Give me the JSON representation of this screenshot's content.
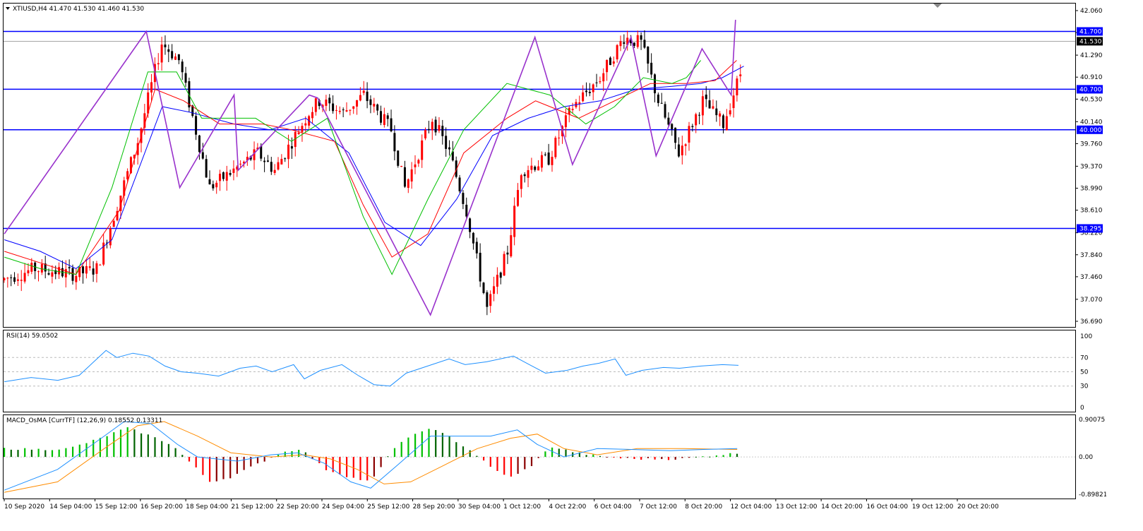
{
  "header": {
    "symbol_line": "XTIUSD,H4  41.470 41.530 41.460 41.530",
    "rsi_label": "RSI(14) 59.0502",
    "macd_label": "MACD_OsMA [CurrTF] (12,26,9) 0.18552 0.13311"
  },
  "colors": {
    "bull": "#ff0000",
    "bear": "#000000",
    "hline": "#0000ff",
    "zigzag": "#9932cc",
    "ma_fast": "#00c000",
    "ma_mid": "#ff0000",
    "ma_slow": "#0000ff",
    "rsi": "#1e90ff",
    "macd_main": "#1e90ff",
    "macd_signal": "#ff8c00"
  },
  "chart_data": [
    {
      "type": "candlestick",
      "title": "XTIUSD,H4",
      "ylim": [
        36.69,
        42.06
      ],
      "y_ticks": [
        "42.060",
        "41.680",
        "41.290",
        "40.910",
        "40.530",
        "40.140",
        "39.760",
        "39.370",
        "38.990",
        "38.610",
        "38.220",
        "37.840",
        "37.460",
        "37.070",
        "36.690"
      ],
      "x_ticks": [
        "10 Sep 2020",
        "14 Sep 04:00",
        "15 Sep 12:00",
        "16 Sep 20:00",
        "18 Sep 04:00",
        "21 Sep 12:00",
        "22 Sep 20:00",
        "24 Sep 04:00",
        "25 Sep 12:00",
        "28 Sep 20:00",
        "30 Sep 04:00",
        "1 Oct 12:00",
        "4 Oct 22:00",
        "6 Oct 04:00",
        "7 Oct 12:00",
        "8 Oct 20:00",
        "12 Oct 04:00",
        "13 Oct 12:00",
        "14 Oct 20:00",
        "16 Oct 04:00",
        "19 Oct 12:00",
        "20 Oct 20:00"
      ],
      "horizontal_levels": [
        {
          "value": 41.7,
          "label": "41.700"
        },
        {
          "value": 40.7,
          "label": "40.700"
        },
        {
          "value": 40.0,
          "label": "40.000"
        },
        {
          "value": 38.295,
          "label": "38.295"
        }
      ],
      "current_price": {
        "value": 41.53,
        "label": "41.530"
      },
      "candle_count": 216,
      "price_path": [
        [
          0,
          37.4
        ],
        [
          10,
          37.6
        ],
        [
          22,
          37.5
        ],
        [
          28,
          37.6
        ],
        [
          40,
          39.8
        ],
        [
          47,
          41.5
        ],
        [
          52,
          41.2
        ],
        [
          61,
          39.0
        ],
        [
          75,
          39.6
        ],
        [
          80,
          39.3
        ],
        [
          90,
          40.3
        ],
        [
          93,
          40.5
        ],
        [
          100,
          40.3
        ],
        [
          106,
          40.6
        ],
        [
          114,
          40.0
        ],
        [
          118,
          39.0
        ],
        [
          126,
          40.2
        ],
        [
          131,
          39.6
        ],
        [
          136,
          38.6
        ],
        [
          142,
          36.9
        ],
        [
          148,
          37.9
        ],
        [
          152,
          39.3
        ],
        [
          160,
          39.5
        ],
        [
          167,
          40.4
        ],
        [
          175,
          40.9
        ],
        [
          182,
          41.6
        ],
        [
          187,
          41.5
        ],
        [
          192,
          40.5
        ],
        [
          198,
          39.6
        ],
        [
          205,
          40.5
        ],
        [
          211,
          40.1
        ],
        [
          219,
          41.5
        ],
        [
          224,
          40.6
        ],
        [
          227,
          39.6
        ],
        [
          233,
          40.6
        ],
        [
          237,
          41.2
        ],
        [
          246,
          41.1
        ],
        [
          252,
          41.0
        ],
        [
          256,
          41.4
        ],
        [
          262,
          41.4
        ],
        [
          266,
          40.7
        ],
        [
          270,
          41.6
        ],
        [
          274,
          41.53
        ]
      ],
      "zigzag": [
        [
          0,
          38.2
        ],
        [
          34,
          41.7
        ],
        [
          42,
          39.0
        ],
        [
          55,
          40.6
        ],
        [
          56,
          39.3
        ],
        [
          73,
          40.6
        ],
        [
          75,
          40.55
        ],
        [
          102,
          36.8
        ],
        [
          127,
          41.6
        ],
        [
          136,
          39.4
        ],
        [
          150,
          41.6
        ],
        [
          156,
          39.55
        ],
        [
          167,
          41.4
        ],
        [
          174,
          40.6
        ],
        [
          175,
          41.9
        ]
      ],
      "ma_fast_path": [
        [
          0,
          37.8
        ],
        [
          10,
          37.6
        ],
        [
          20,
          37.5
        ],
        [
          30,
          39.0
        ],
        [
          40,
          41.0
        ],
        [
          48,
          41.0
        ],
        [
          55,
          40.2
        ],
        [
          70,
          40.2
        ],
        [
          80,
          39.8
        ],
        [
          90,
          40.2
        ],
        [
          100,
          38.5
        ],
        [
          108,
          37.5
        ],
        [
          118,
          38.8
        ],
        [
          128,
          40.0
        ],
        [
          140,
          40.8
        ],
        [
          152,
          40.6
        ],
        [
          162,
          40.1
        ],
        [
          170,
          40.4
        ],
        [
          178,
          40.9
        ],
        [
          186,
          40.8
        ],
        [
          190,
          40.9
        ],
        [
          194,
          41.2
        ]
      ],
      "ma_mid_path": [
        [
          0,
          37.9
        ],
        [
          10,
          37.7
        ],
        [
          20,
          37.5
        ],
        [
          32,
          38.6
        ],
        [
          42,
          40.7
        ],
        [
          50,
          40.5
        ],
        [
          60,
          40.1
        ],
        [
          72,
          40.1
        ],
        [
          80,
          40.0
        ],
        [
          92,
          39.8
        ],
        [
          100,
          38.7
        ],
        [
          108,
          37.8
        ],
        [
          118,
          38.2
        ],
        [
          128,
          39.6
        ],
        [
          140,
          40.2
        ],
        [
          148,
          40.5
        ],
        [
          160,
          40.2
        ],
        [
          170,
          40.5
        ],
        [
          180,
          40.8
        ],
        [
          190,
          40.8
        ],
        [
          198,
          40.85
        ],
        [
          204,
          41.2
        ]
      ],
      "ma_slow_path": [
        [
          0,
          38.1
        ],
        [
          10,
          37.9
        ],
        [
          20,
          37.6
        ],
        [
          30,
          38.1
        ],
        [
          44,
          40.4
        ],
        [
          52,
          40.3
        ],
        [
          64,
          40.1
        ],
        [
          74,
          40.0
        ],
        [
          84,
          40.2
        ],
        [
          96,
          39.6
        ],
        [
          106,
          38.4
        ],
        [
          116,
          38.0
        ],
        [
          126,
          38.8
        ],
        [
          136,
          39.9
        ],
        [
          146,
          40.2
        ],
        [
          156,
          40.4
        ],
        [
          166,
          40.5
        ],
        [
          176,
          40.7
        ],
        [
          186,
          40.75
        ],
        [
          194,
          40.8
        ],
        [
          200,
          40.9
        ],
        [
          206,
          41.1
        ]
      ]
    },
    {
      "type": "line",
      "title": "RSI(14) 59.0502",
      "ylim": [
        0,
        100
      ],
      "y_ticks": [
        "100",
        "70",
        "50",
        "30",
        "0"
      ],
      "levels": [
        70,
        50,
        30
      ],
      "series": [
        {
          "name": "RSI(14)",
          "points": [
            [
              0,
              36
            ],
            [
              10,
              42
            ],
            [
              20,
              38
            ],
            [
              28,
              45
            ],
            [
              34,
              66
            ],
            [
              38,
              80
            ],
            [
              42,
              70
            ],
            [
              48,
              76
            ],
            [
              54,
              72
            ],
            [
              60,
              58
            ],
            [
              66,
              50
            ],
            [
              72,
              48
            ],
            [
              80,
              44
            ],
            [
              88,
              55
            ],
            [
              94,
              58
            ],
            [
              100,
              50
            ],
            [
              108,
              60
            ],
            [
              112,
              40
            ],
            [
              118,
              52
            ],
            [
              126,
              60
            ],
            [
              132,
              45
            ],
            [
              138,
              32
            ],
            [
              144,
              30
            ],
            [
              150,
              48
            ],
            [
              158,
              58
            ],
            [
              166,
              68
            ],
            [
              172,
              60
            ],
            [
              180,
              64
            ],
            [
              190,
              72
            ],
            [
              196,
              60
            ],
            [
              202,
              48
            ],
            [
              210,
              52
            ],
            [
              216,
              58
            ],
            [
              222,
              62
            ],
            [
              228,
              68
            ],
            [
              232,
              45
            ],
            [
              238,
              52
            ],
            [
              246,
              56
            ],
            [
              252,
              55
            ],
            [
              260,
              58
            ],
            [
              268,
              60
            ],
            [
              274,
              59
            ]
          ]
        }
      ]
    },
    {
      "type": "bar",
      "title": "MACD_OsMA [CurrTF] (12,26,9) 0.18552 0.13311",
      "ylim": [
        -0.89821,
        0.90075
      ],
      "y_ticks": [
        "0.90075",
        "0.00",
        "-0.89821"
      ],
      "histogram": [
        [
          0,
          0.2
        ],
        [
          12,
          0.18
        ],
        [
          20,
          0.2
        ],
        [
          30,
          0.45
        ],
        [
          38,
          0.7
        ],
        [
          44,
          0.55
        ],
        [
          52,
          0.3
        ],
        [
          58,
          -0.15
        ],
        [
          64,
          -0.6
        ],
        [
          70,
          -0.5
        ],
        [
          78,
          -0.2
        ],
        [
          86,
          0.1
        ],
        [
          92,
          0.2
        ],
        [
          100,
          -0.3
        ],
        [
          108,
          -0.5
        ],
        [
          114,
          -0.6
        ],
        [
          122,
          0.3
        ],
        [
          132,
          0.7
        ],
        [
          138,
          0.5
        ],
        [
          146,
          0.1
        ],
        [
          152,
          -0.3
        ],
        [
          158,
          -0.5
        ],
        [
          164,
          -0.2
        ],
        [
          170,
          0.25
        ],
        [
          178,
          0.1
        ],
        [
          186,
          0.0
        ],
        [
          196,
          -0.05
        ],
        [
          210,
          -0.05
        ],
        [
          222,
          0.05
        ],
        [
          230,
          0.1
        ]
      ],
      "series": [
        {
          "name": "MACD",
          "points": [
            [
              0,
              -0.8
            ],
            [
              16,
              -0.3
            ],
            [
              30,
              0.5
            ],
            [
              36,
              0.85
            ],
            [
              44,
              0.8
            ],
            [
              52,
              0.3
            ],
            [
              58,
              0.0
            ],
            [
              70,
              -0.1
            ],
            [
              80,
              0.05
            ],
            [
              88,
              0.1
            ],
            [
              96,
              -0.15
            ],
            [
              104,
              -0.6
            ],
            [
              110,
              -0.75
            ],
            [
              118,
              -0.2
            ],
            [
              128,
              0.5
            ],
            [
              138,
              0.5
            ],
            [
              146,
              0.5
            ],
            [
              154,
              0.65
            ],
            [
              160,
              0.3
            ],
            [
              168,
              0.0
            ],
            [
              178,
              0.2
            ],
            [
              188,
              0.18
            ],
            [
              200,
              0.15
            ],
            [
              210,
              0.18
            ],
            [
              220,
              0.2
            ]
          ]
        },
        {
          "name": "Signal",
          "points": [
            [
              0,
              -0.85
            ],
            [
              16,
              -0.6
            ],
            [
              30,
              0.2
            ],
            [
              40,
              0.75
            ],
            [
              48,
              0.85
            ],
            [
              58,
              0.5
            ],
            [
              68,
              0.1
            ],
            [
              80,
              0.0
            ],
            [
              90,
              0.05
            ],
            [
              98,
              -0.05
            ],
            [
              106,
              -0.3
            ],
            [
              114,
              -0.65
            ],
            [
              122,
              -0.6
            ],
            [
              132,
              -0.2
            ],
            [
              142,
              0.2
            ],
            [
              152,
              0.45
            ],
            [
              160,
              0.55
            ],
            [
              168,
              0.2
            ],
            [
              178,
              0.05
            ],
            [
              190,
              0.2
            ],
            [
              204,
              0.2
            ],
            [
              220,
              0.18
            ]
          ]
        }
      ]
    }
  ]
}
